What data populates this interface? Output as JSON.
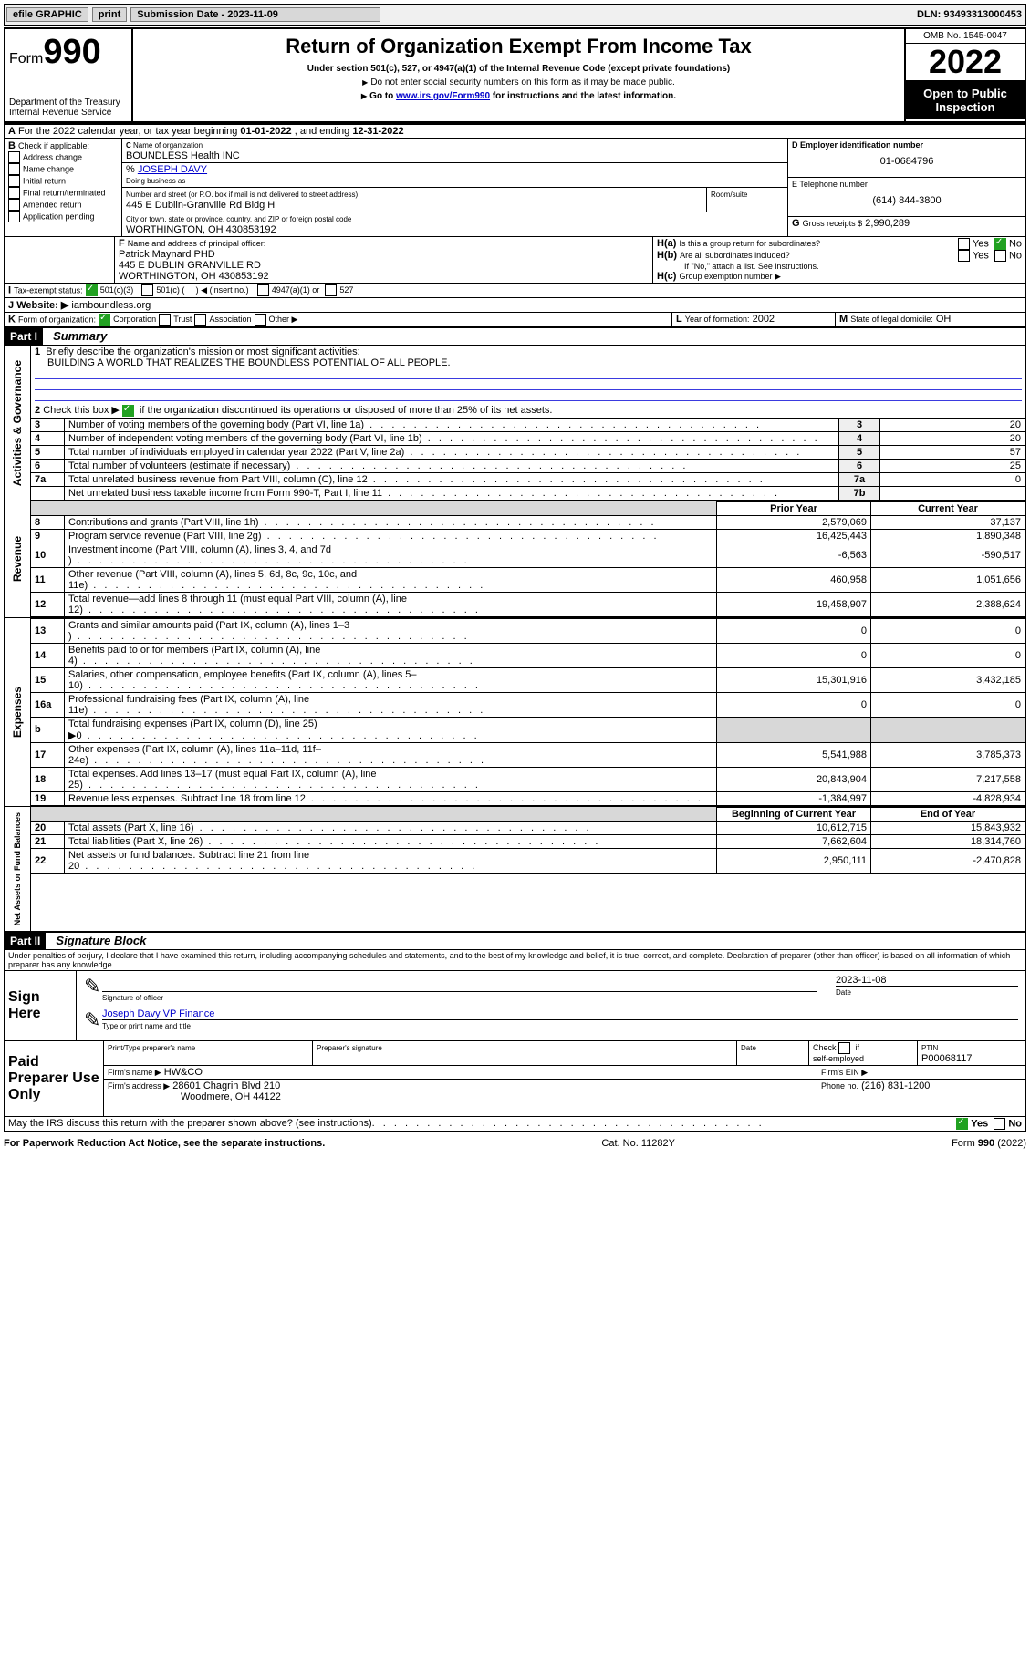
{
  "topbar": {
    "efile": "efile GRAPHIC",
    "print": "print",
    "sub_label": "Submission Date - 2023-11-09",
    "dln": "DLN: 93493313000453"
  },
  "header": {
    "form_label": "Form",
    "form_num": "990",
    "title": "Return of Organization Exempt From Income Tax",
    "subtitle1": "Under section 501(c), 527, or 4947(a)(1) of the Internal Revenue Code (except private foundations)",
    "subtitle2": "Do not enter social security numbers on this form as it may be made public.",
    "subtitle3a": "Go to ",
    "subtitle3_link": "www.irs.gov/Form990",
    "subtitle3b": " for instructions and the latest information.",
    "dept1": "Department of the Treasury",
    "dept2": "Internal Revenue Service",
    "omb": "OMB No. 1545-0047",
    "year": "2022",
    "open_public": "Open to Public Inspection"
  },
  "lineA": {
    "text_a": "For the 2022 calendar year, or tax year beginning ",
    "beg": "01-01-2022",
    "text_b": " , and ending ",
    "end": "12-31-2022"
  },
  "boxB": {
    "label": "B",
    "check_label": "Check if applicable:",
    "items": [
      "Address change",
      "Name change",
      "Initial return",
      "Final return/terminated",
      "Amended return",
      "Application pending"
    ]
  },
  "boxC": {
    "c_label": "C",
    "name_label": "Name of organization",
    "name": "BOUNDLESS Health INC",
    "care_of_label": "%",
    "care_of": "JOSEPH DAVY",
    "dba_label": "Doing business as",
    "street_label": "Number and street (or P.O. box if mail is not delivered to street address)",
    "street": "445 E Dublin-Granville Rd Bldg H",
    "room_label": "Room/suite",
    "city_label": "City or town, state or province, country, and ZIP or foreign postal code",
    "city": "WORTHINGTON, OH  430853192"
  },
  "boxD": {
    "label": "D Employer identification number",
    "ein": "01-0684796"
  },
  "boxE": {
    "label": "E Telephone number",
    "phone": "(614) 844-3800"
  },
  "boxG": {
    "label": "G",
    "text": "Gross receipts $",
    "amount": "2,990,289"
  },
  "boxF": {
    "label": "F",
    "text": "Name and address of principal officer:",
    "name": "Patrick Maynard PHD",
    "addr1": "445 E DUBLIN GRANVILLE RD",
    "addr2": "WORTHINGTON, OH  430853192"
  },
  "boxH": {
    "a_label": "H(a)",
    "a_text": "Is this a group return for subordinates?",
    "b_label": "H(b)",
    "b_text": "Are all subordinates included?",
    "b_note": "If \"No,\" attach a list. See instructions.",
    "c_label": "H(c)",
    "c_text": "Group exemption number ▶",
    "yes": "Yes",
    "no": "No"
  },
  "lineI": {
    "label": "I",
    "text": "Tax-exempt status:",
    "o1": "501(c)(3)",
    "o2a": "501(c) (",
    "o2b": ") ◀ (insert no.)",
    "o3": "4947(a)(1) or",
    "o4": "527"
  },
  "lineJ": {
    "label": "J",
    "text": "Website: ▶",
    "site": "iamboundless.org"
  },
  "lineK": {
    "label": "K",
    "text": "Form of organization:",
    "o1": "Corporation",
    "o2": "Trust",
    "o3": "Association",
    "o4": "Other ▶"
  },
  "lineL": {
    "label": "L",
    "text": "Year of formation:",
    "year": "2002"
  },
  "lineM": {
    "label": "M",
    "text": "State of legal domicile:",
    "state": "OH"
  },
  "part1": {
    "hdr": "Part I",
    "title": "Summary",
    "q1a": "Briefly describe the organization's mission or most significant activities:",
    "q1b": "BUILDING A WORLD THAT REALIZES THE BOUNDLESS POTENTIAL OF ALL PEOPLE.",
    "q2": "Check this box ▶",
    "q2b": "if the organization discontinued its operations or disposed of more than 25% of its net assets.",
    "gov_label": "Activities & Governance",
    "rev_label": "Revenue",
    "exp_label": "Expenses",
    "net_label": "Net Assets or Fund Balances",
    "rows_gov": [
      {
        "n": "3",
        "t": "Number of voting members of the governing body (Part VI, line 1a)",
        "r": "3",
        "v": "20"
      },
      {
        "n": "4",
        "t": "Number of independent voting members of the governing body (Part VI, line 1b)",
        "r": "4",
        "v": "20"
      },
      {
        "n": "5",
        "t": "Total number of individuals employed in calendar year 2022 (Part V, line 2a)",
        "r": "5",
        "v": "57"
      },
      {
        "n": "6",
        "t": "Total number of volunteers (estimate if necessary)",
        "r": "6",
        "v": "25"
      },
      {
        "n": "7a",
        "t": "Total unrelated business revenue from Part VIII, column (C), line 12",
        "r": "7a",
        "v": "0"
      },
      {
        "n": "",
        "t": "Net unrelated business taxable income from Form 990-T, Part I, line 11",
        "r": "7b",
        "v": ""
      }
    ],
    "hdr_prior": "Prior Year",
    "hdr_curr": "Current Year",
    "hdr_begin": "Beginning of Current Year",
    "hdr_end": "End of Year",
    "rows_rev": [
      {
        "n": "8",
        "t": "Contributions and grants (Part VIII, line 1h)",
        "p": "2,579,069",
        "c": "37,137"
      },
      {
        "n": "9",
        "t": "Program service revenue (Part VIII, line 2g)",
        "p": "16,425,443",
        "c": "1,890,348"
      },
      {
        "n": "10",
        "t": "Investment income (Part VIII, column (A), lines 3, 4, and 7d )",
        "p": "-6,563",
        "c": "-590,517"
      },
      {
        "n": "11",
        "t": "Other revenue (Part VIII, column (A), lines 5, 6d, 8c, 9c, 10c, and 11e)",
        "p": "460,958",
        "c": "1,051,656"
      },
      {
        "n": "12",
        "t": "Total revenue—add lines 8 through 11 (must equal Part VIII, column (A), line 12)",
        "p": "19,458,907",
        "c": "2,388,624"
      }
    ],
    "rows_exp": [
      {
        "n": "13",
        "t": "Grants and similar amounts paid (Part IX, column (A), lines 1–3 )",
        "p": "0",
        "c": "0"
      },
      {
        "n": "14",
        "t": "Benefits paid to or for members (Part IX, column (A), line 4)",
        "p": "0",
        "c": "0"
      },
      {
        "n": "15",
        "t": "Salaries, other compensation, employee benefits (Part IX, column (A), lines 5–10)",
        "p": "15,301,916",
        "c": "3,432,185"
      },
      {
        "n": "16a",
        "t": "Professional fundraising fees (Part IX, column (A), line 11e)",
        "p": "0",
        "c": "0"
      },
      {
        "n": "b",
        "t": "Total fundraising expenses (Part IX, column (D), line 25) ▶0",
        "p": "",
        "c": "",
        "grey": true
      },
      {
        "n": "17",
        "t": "Other expenses (Part IX, column (A), lines 11a–11d, 11f–24e)",
        "p": "5,541,988",
        "c": "3,785,373"
      },
      {
        "n": "18",
        "t": "Total expenses. Add lines 13–17 (must equal Part IX, column (A), line 25)",
        "p": "20,843,904",
        "c": "7,217,558"
      },
      {
        "n": "19",
        "t": "Revenue less expenses. Subtract line 18 from line 12",
        "p": "-1,384,997",
        "c": "-4,828,934"
      }
    ],
    "rows_net": [
      {
        "n": "20",
        "t": "Total assets (Part X, line 16)",
        "p": "10,612,715",
        "c": "15,843,932"
      },
      {
        "n": "21",
        "t": "Total liabilities (Part X, line 26)",
        "p": "7,662,604",
        "c": "18,314,760"
      },
      {
        "n": "22",
        "t": "Net assets or fund balances. Subtract line 21 from line 20",
        "p": "2,950,111",
        "c": "-2,470,828"
      }
    ]
  },
  "part2": {
    "hdr": "Part II",
    "title": "Signature Block",
    "decl": "Under penalties of perjury, I declare that I have examined this return, including accompanying schedules and statements, and to the best of my knowledge and belief, it is true, correct, and complete. Declaration of preparer (other than officer) is based on all information of which preparer has any knowledge.",
    "sign_here": "Sign Here",
    "sig_officer": "Signature of officer",
    "sig_date_label": "Date",
    "sig_date": "2023-11-08",
    "name_title": "Joseph Davy  VP Finance",
    "name_title_label": "Type or print name and title",
    "paid": "Paid Preparer Use Only",
    "pp_name_label": "Print/Type preparer's name",
    "pp_sig_label": "Preparer's signature",
    "pp_date_label": "Date",
    "pp_check": "Check          if self-employed",
    "ptin_label": "PTIN",
    "ptin": "P00068117",
    "firm_name_label": "Firm's name  ▶",
    "firm_name": "HW&CO",
    "firm_ein_label": "Firm's EIN ▶",
    "firm_addr_label": "Firm's address ▶",
    "firm_addr1": "28601 Chagrin Blvd 210",
    "firm_addr2": "Woodmere, OH  44122",
    "firm_phone_label": "Phone no.",
    "firm_phone": "(216) 831-1200",
    "irs_discuss": "May the IRS discuss this return with the preparer shown above? (see instructions)"
  },
  "footer": {
    "l": "For Paperwork Reduction Act Notice, see the separate instructions.",
    "m": "Cat. No. 11282Y",
    "r": "Form 990 (2022)"
  }
}
